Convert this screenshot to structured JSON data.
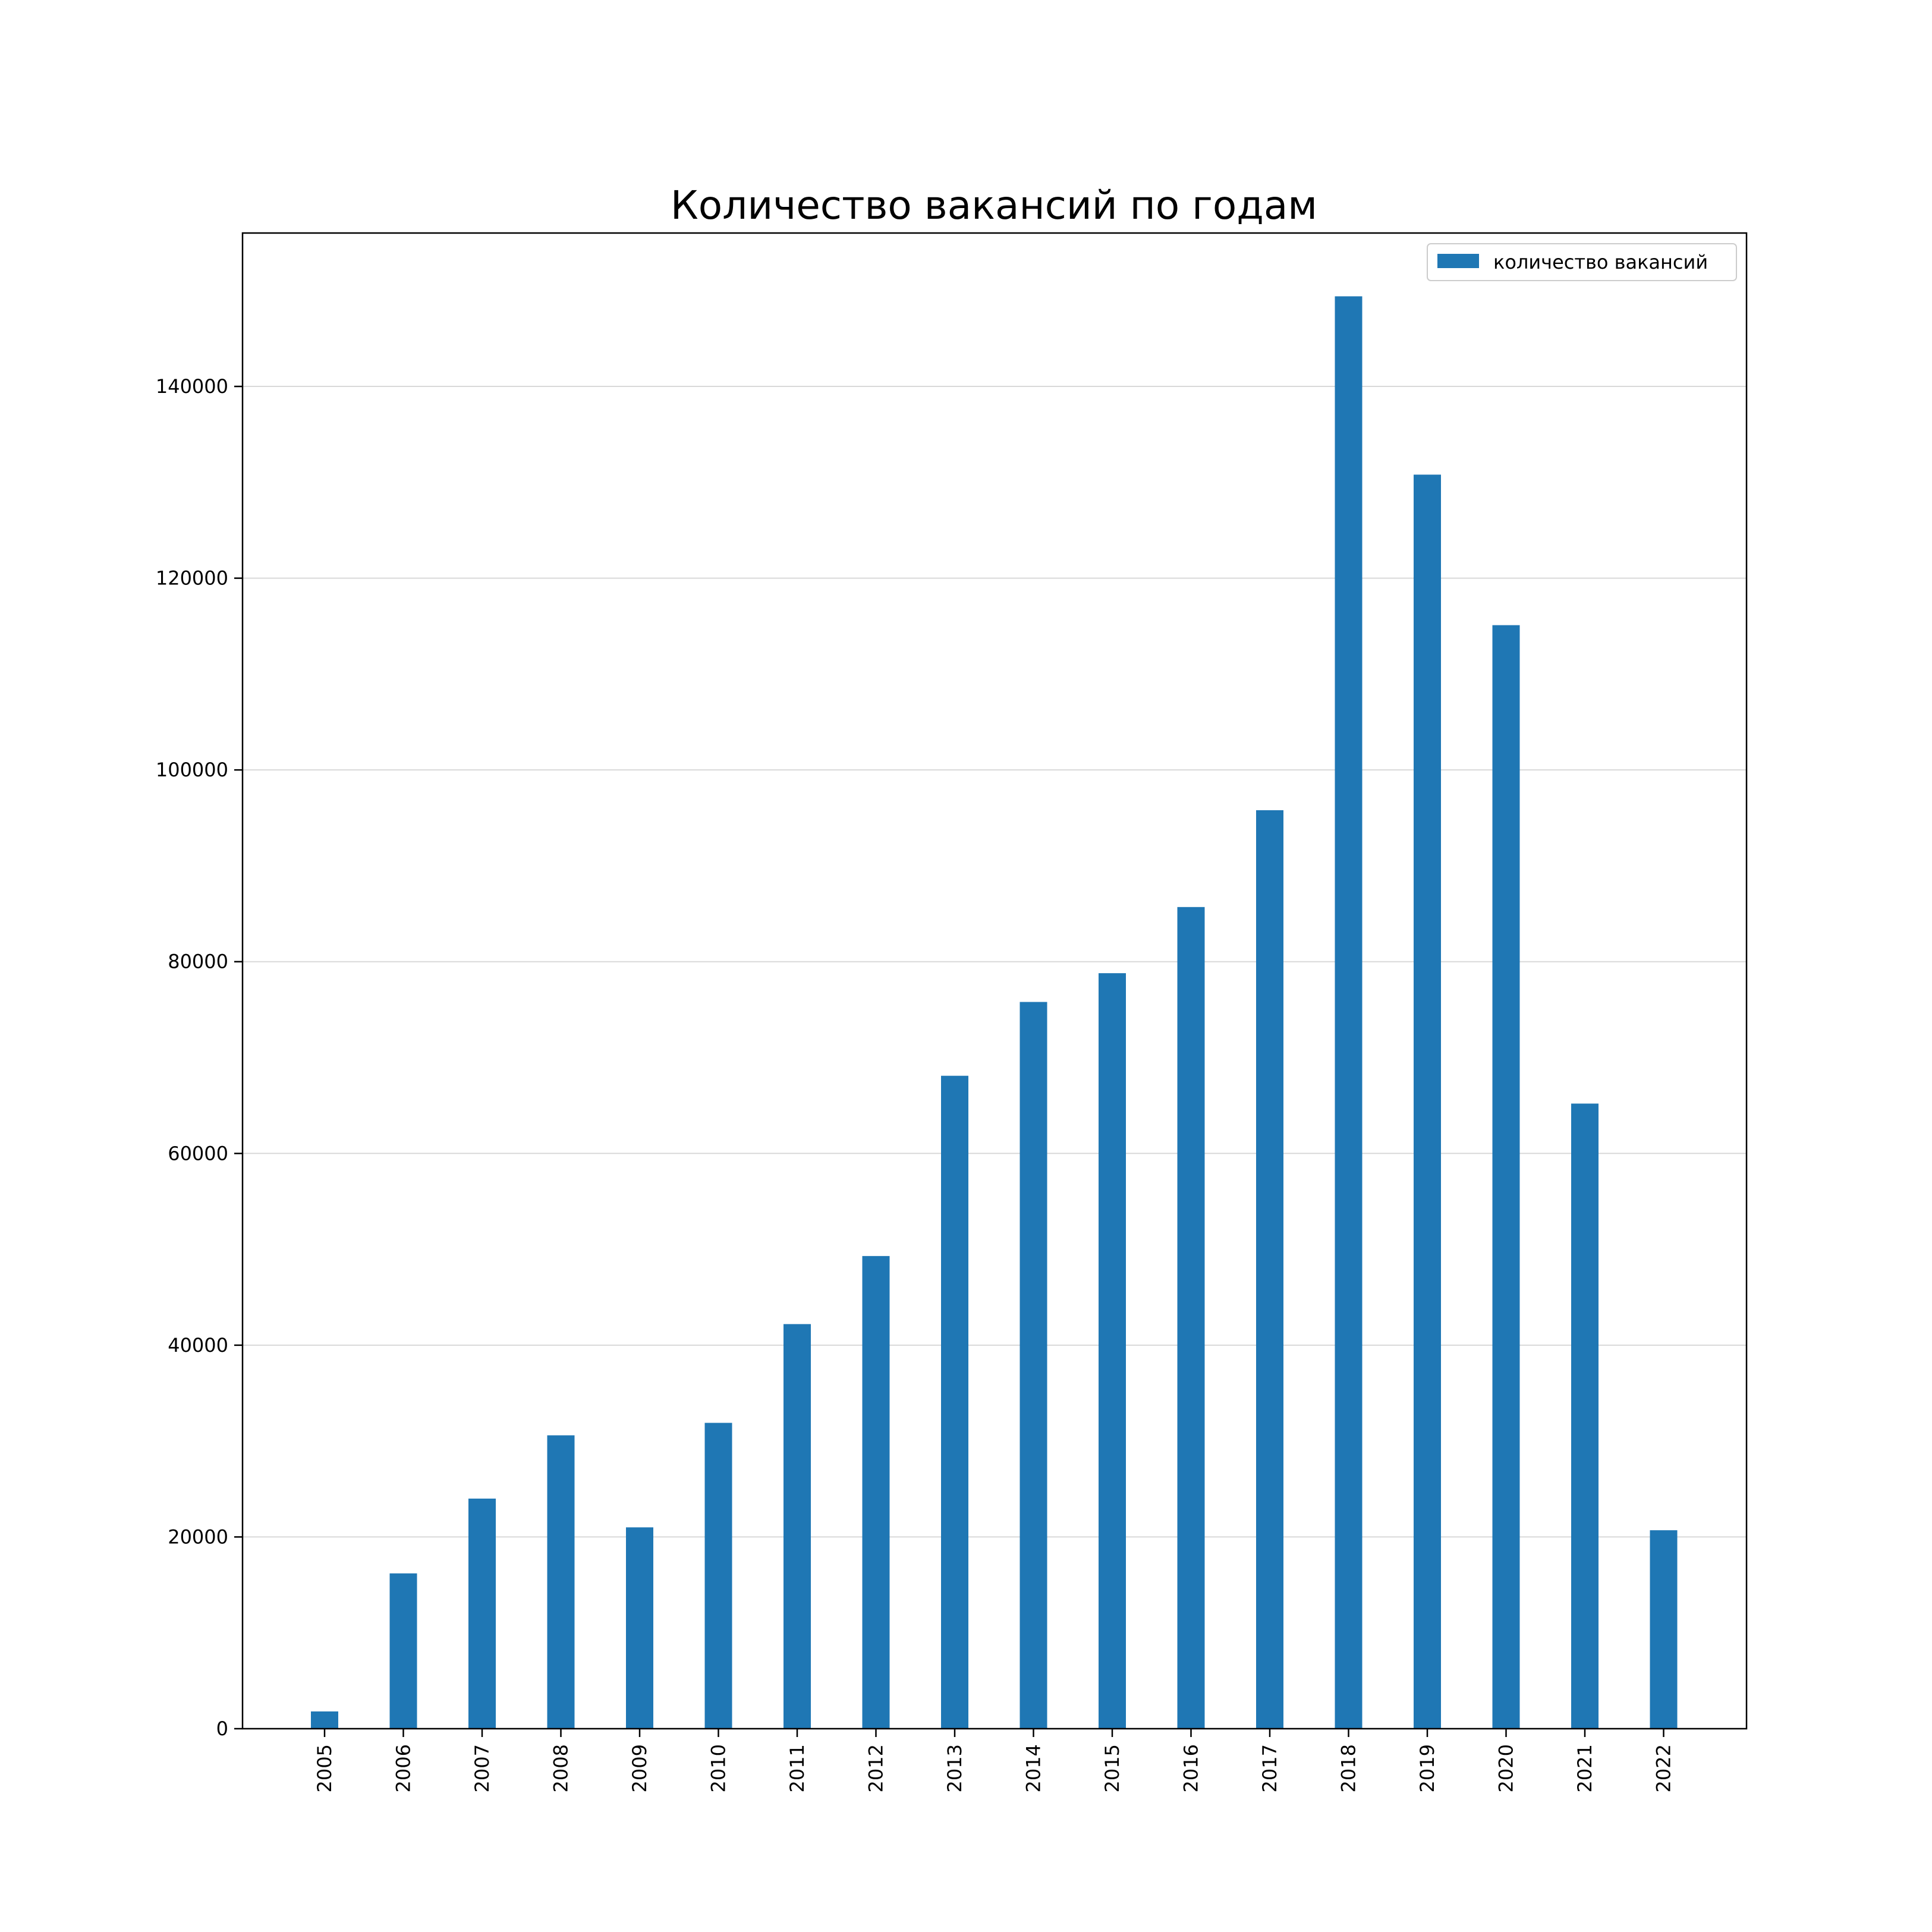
{
  "chart_data": {
    "type": "bar",
    "title": "Количество вакансий по годам",
    "xlabel": "",
    "ylabel": "",
    "ylim": [
      0,
      156000
    ],
    "yticks": [
      0,
      20000,
      40000,
      60000,
      80000,
      100000,
      120000,
      140000
    ],
    "grid": "y",
    "legend_position": "top-right",
    "bar_color": "#1f77b4",
    "categories": [
      "2005",
      "2006",
      "2007",
      "2008",
      "2009",
      "2010",
      "2011",
      "2012",
      "2013",
      "2014",
      "2015",
      "2016",
      "2017",
      "2018",
      "2019",
      "2020",
      "2021",
      "2022"
    ],
    "series": [
      {
        "name": "количество вакансий",
        "values": [
          1800,
          16200,
          24000,
          30600,
          21000,
          31900,
          42200,
          49300,
          68100,
          75800,
          78800,
          85700,
          95800,
          149400,
          130800,
          115100,
          65200,
          20700
        ]
      }
    ]
  }
}
